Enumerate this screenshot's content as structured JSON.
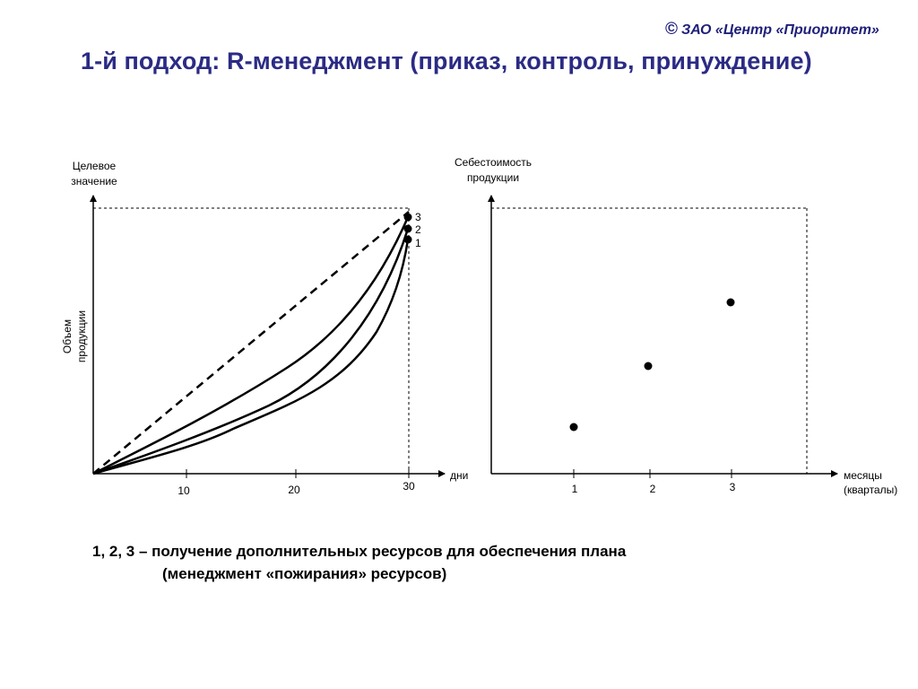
{
  "header": {
    "copyright_symbol": "©",
    "copyright_text": "ЗАО «Центр «Приоритет»",
    "title": "1-й подход: R-менеджмент (приказ, контроль, принуждение)"
  },
  "chart_left": {
    "y_top_label_1": "Целевое",
    "y_top_label_2": "значение",
    "y_side_label_1": "Объем",
    "y_side_label_2": "продукции",
    "x_label": "дни",
    "x_ticks": [
      "10",
      "20",
      "30"
    ],
    "curve_labels": [
      "3",
      "2",
      "1"
    ]
  },
  "chart_right": {
    "y_label_1": "Себестоимость",
    "y_label_2": "продукции",
    "x_label_1": "месяцы",
    "x_label_2": "(кварталы)",
    "x_ticks": [
      "1",
      "2",
      "3"
    ]
  },
  "caption": {
    "line1": "1, 2, 3 – получение дополнительных ресурсов для обеспечения плана",
    "line2": "(менеджмент «пожирания» ресурсов)"
  }
}
